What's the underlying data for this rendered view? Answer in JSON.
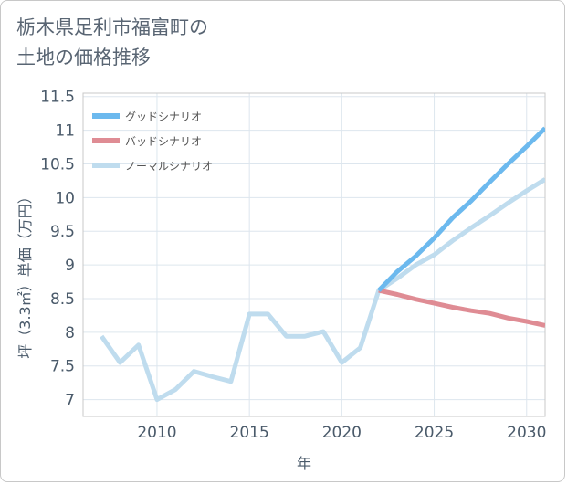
{
  "title": [
    "栃木県足利市福富町の",
    "土地の価格推移"
  ],
  "chart_data": {
    "type": "line",
    "xlabel": "年",
    "ylabel": "坪（3.3㎡）単価（万円）",
    "xlim": [
      2006,
      2031
    ],
    "ylim": [
      6.75,
      11.55
    ],
    "x_ticks": [
      2010,
      2015,
      2020,
      2025,
      2030
    ],
    "y_ticks": [
      7,
      7.5,
      8,
      8.5,
      9,
      9.5,
      10,
      10.5,
      11,
      11.5
    ],
    "x_tick_labels": [
      "2010",
      "2015",
      "2020",
      "2025",
      "2030"
    ],
    "y_tick_labels": [
      "7",
      "7.5",
      "8",
      "8.5",
      "9",
      "9.5",
      "10",
      "10.5",
      "11",
      "11.5"
    ],
    "grid": true,
    "legend_position": "top-left",
    "series": [
      {
        "name": "グッドシナリオ",
        "color": "#6cb9ee",
        "x": [
          2022,
          2023,
          2024,
          2025,
          2026,
          2027,
          2028,
          2029,
          2030,
          2031
        ],
        "values": [
          8.62,
          8.9,
          9.13,
          9.4,
          9.7,
          9.95,
          10.23,
          10.5,
          10.76,
          11.03
        ]
      },
      {
        "name": "バッドシナリオ",
        "color": "#df8c94",
        "x": [
          2022,
          2023,
          2024,
          2025,
          2026,
          2027,
          2028,
          2029,
          2030,
          2031
        ],
        "values": [
          8.62,
          8.56,
          8.49,
          8.43,
          8.37,
          8.32,
          8.28,
          8.21,
          8.16,
          8.1
        ]
      },
      {
        "name": "ノーマルシナリオ",
        "color": "#bfdcee",
        "x": [
          2007,
          2008,
          2009,
          2010,
          2011,
          2012,
          2013,
          2014,
          2015,
          2016,
          2017,
          2018,
          2019,
          2020,
          2021,
          2022,
          2023,
          2024,
          2025,
          2026,
          2027,
          2028,
          2029,
          2030,
          2031
        ],
        "values": [
          7.94,
          7.55,
          7.81,
          7.0,
          7.15,
          7.42,
          7.34,
          7.27,
          8.27,
          8.27,
          7.94,
          7.94,
          8.01,
          7.55,
          7.77,
          8.62,
          8.8,
          9.0,
          9.15,
          9.36,
          9.55,
          9.73,
          9.92,
          10.1,
          10.27
        ]
      }
    ]
  }
}
